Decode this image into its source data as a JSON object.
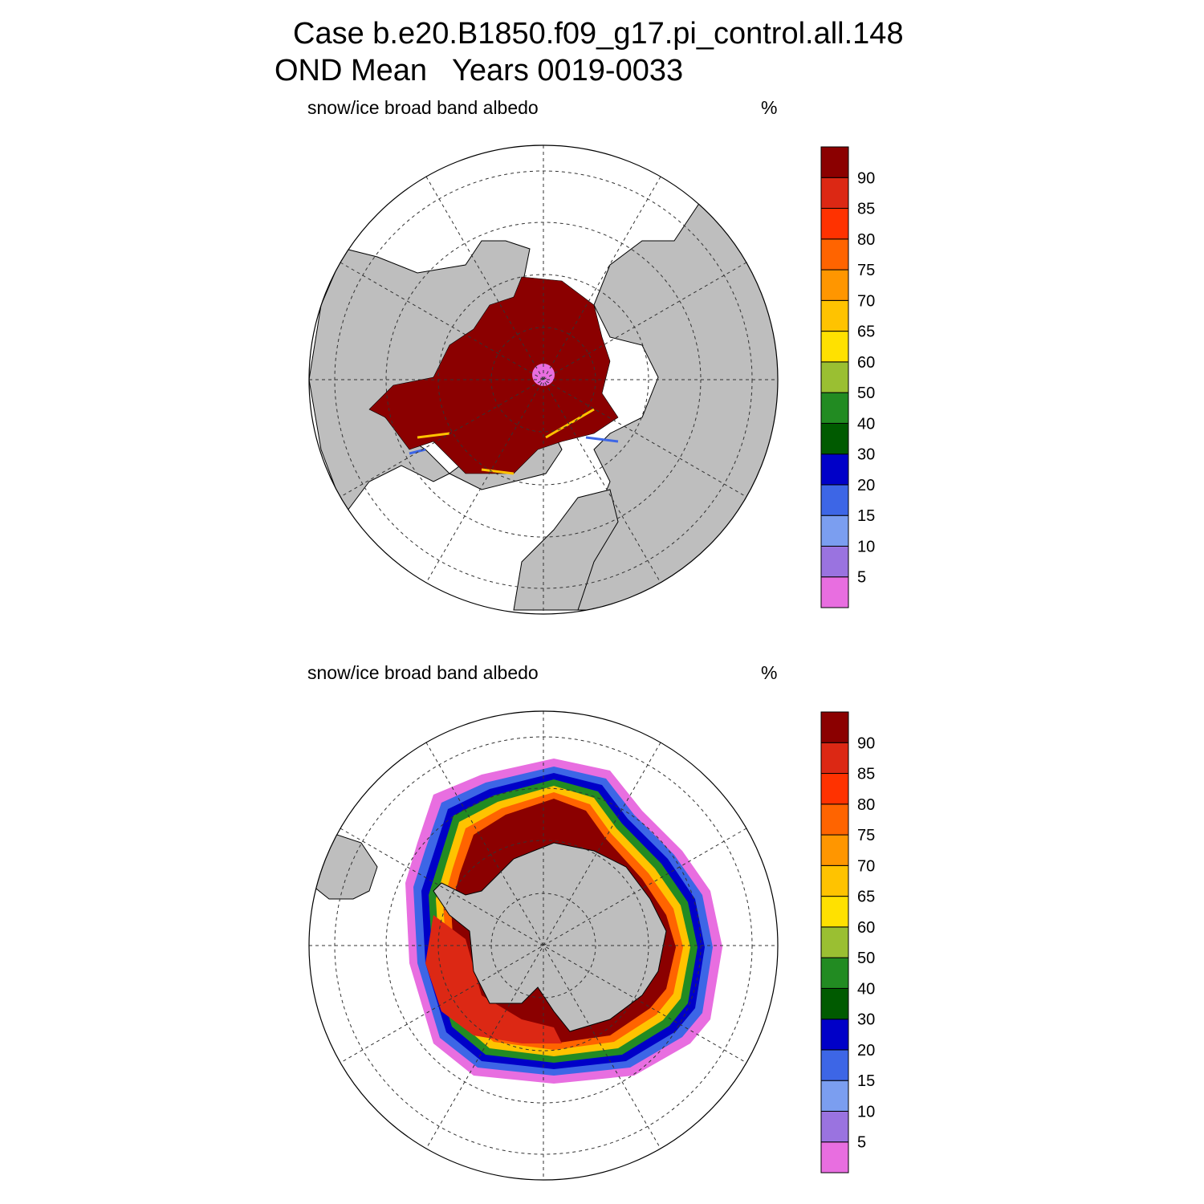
{
  "header": {
    "line1": "Case b.e20.B1850.f09_g17.pi_control.all.148",
    "line2": "OND Mean   Years 0019-0033"
  },
  "colors": {
    "land": "#bebebe",
    "levels": [
      "#e86ee0",
      "#9a73e0",
      "#7b9ef0",
      "#3d66e6",
      "#0000c8",
      "#005a00",
      "#228b22",
      "#9abf32",
      "#ffe100",
      "#ffc300",
      "#ff9600",
      "#ff6400",
      "#ff3200",
      "#dc2814",
      "#8b0000"
    ]
  },
  "colorbar": {
    "labels": [
      "5",
      "10",
      "15",
      "20",
      "30",
      "40",
      "50",
      "60",
      "65",
      "70",
      "75",
      "80",
      "85",
      "90"
    ]
  },
  "panels": [
    {
      "id": "north",
      "label": "snow/ice broad band albedo",
      "units": "%"
    },
    {
      "id": "south",
      "label": "snow/ice broad band albedo",
      "units": "%"
    }
  ]
}
